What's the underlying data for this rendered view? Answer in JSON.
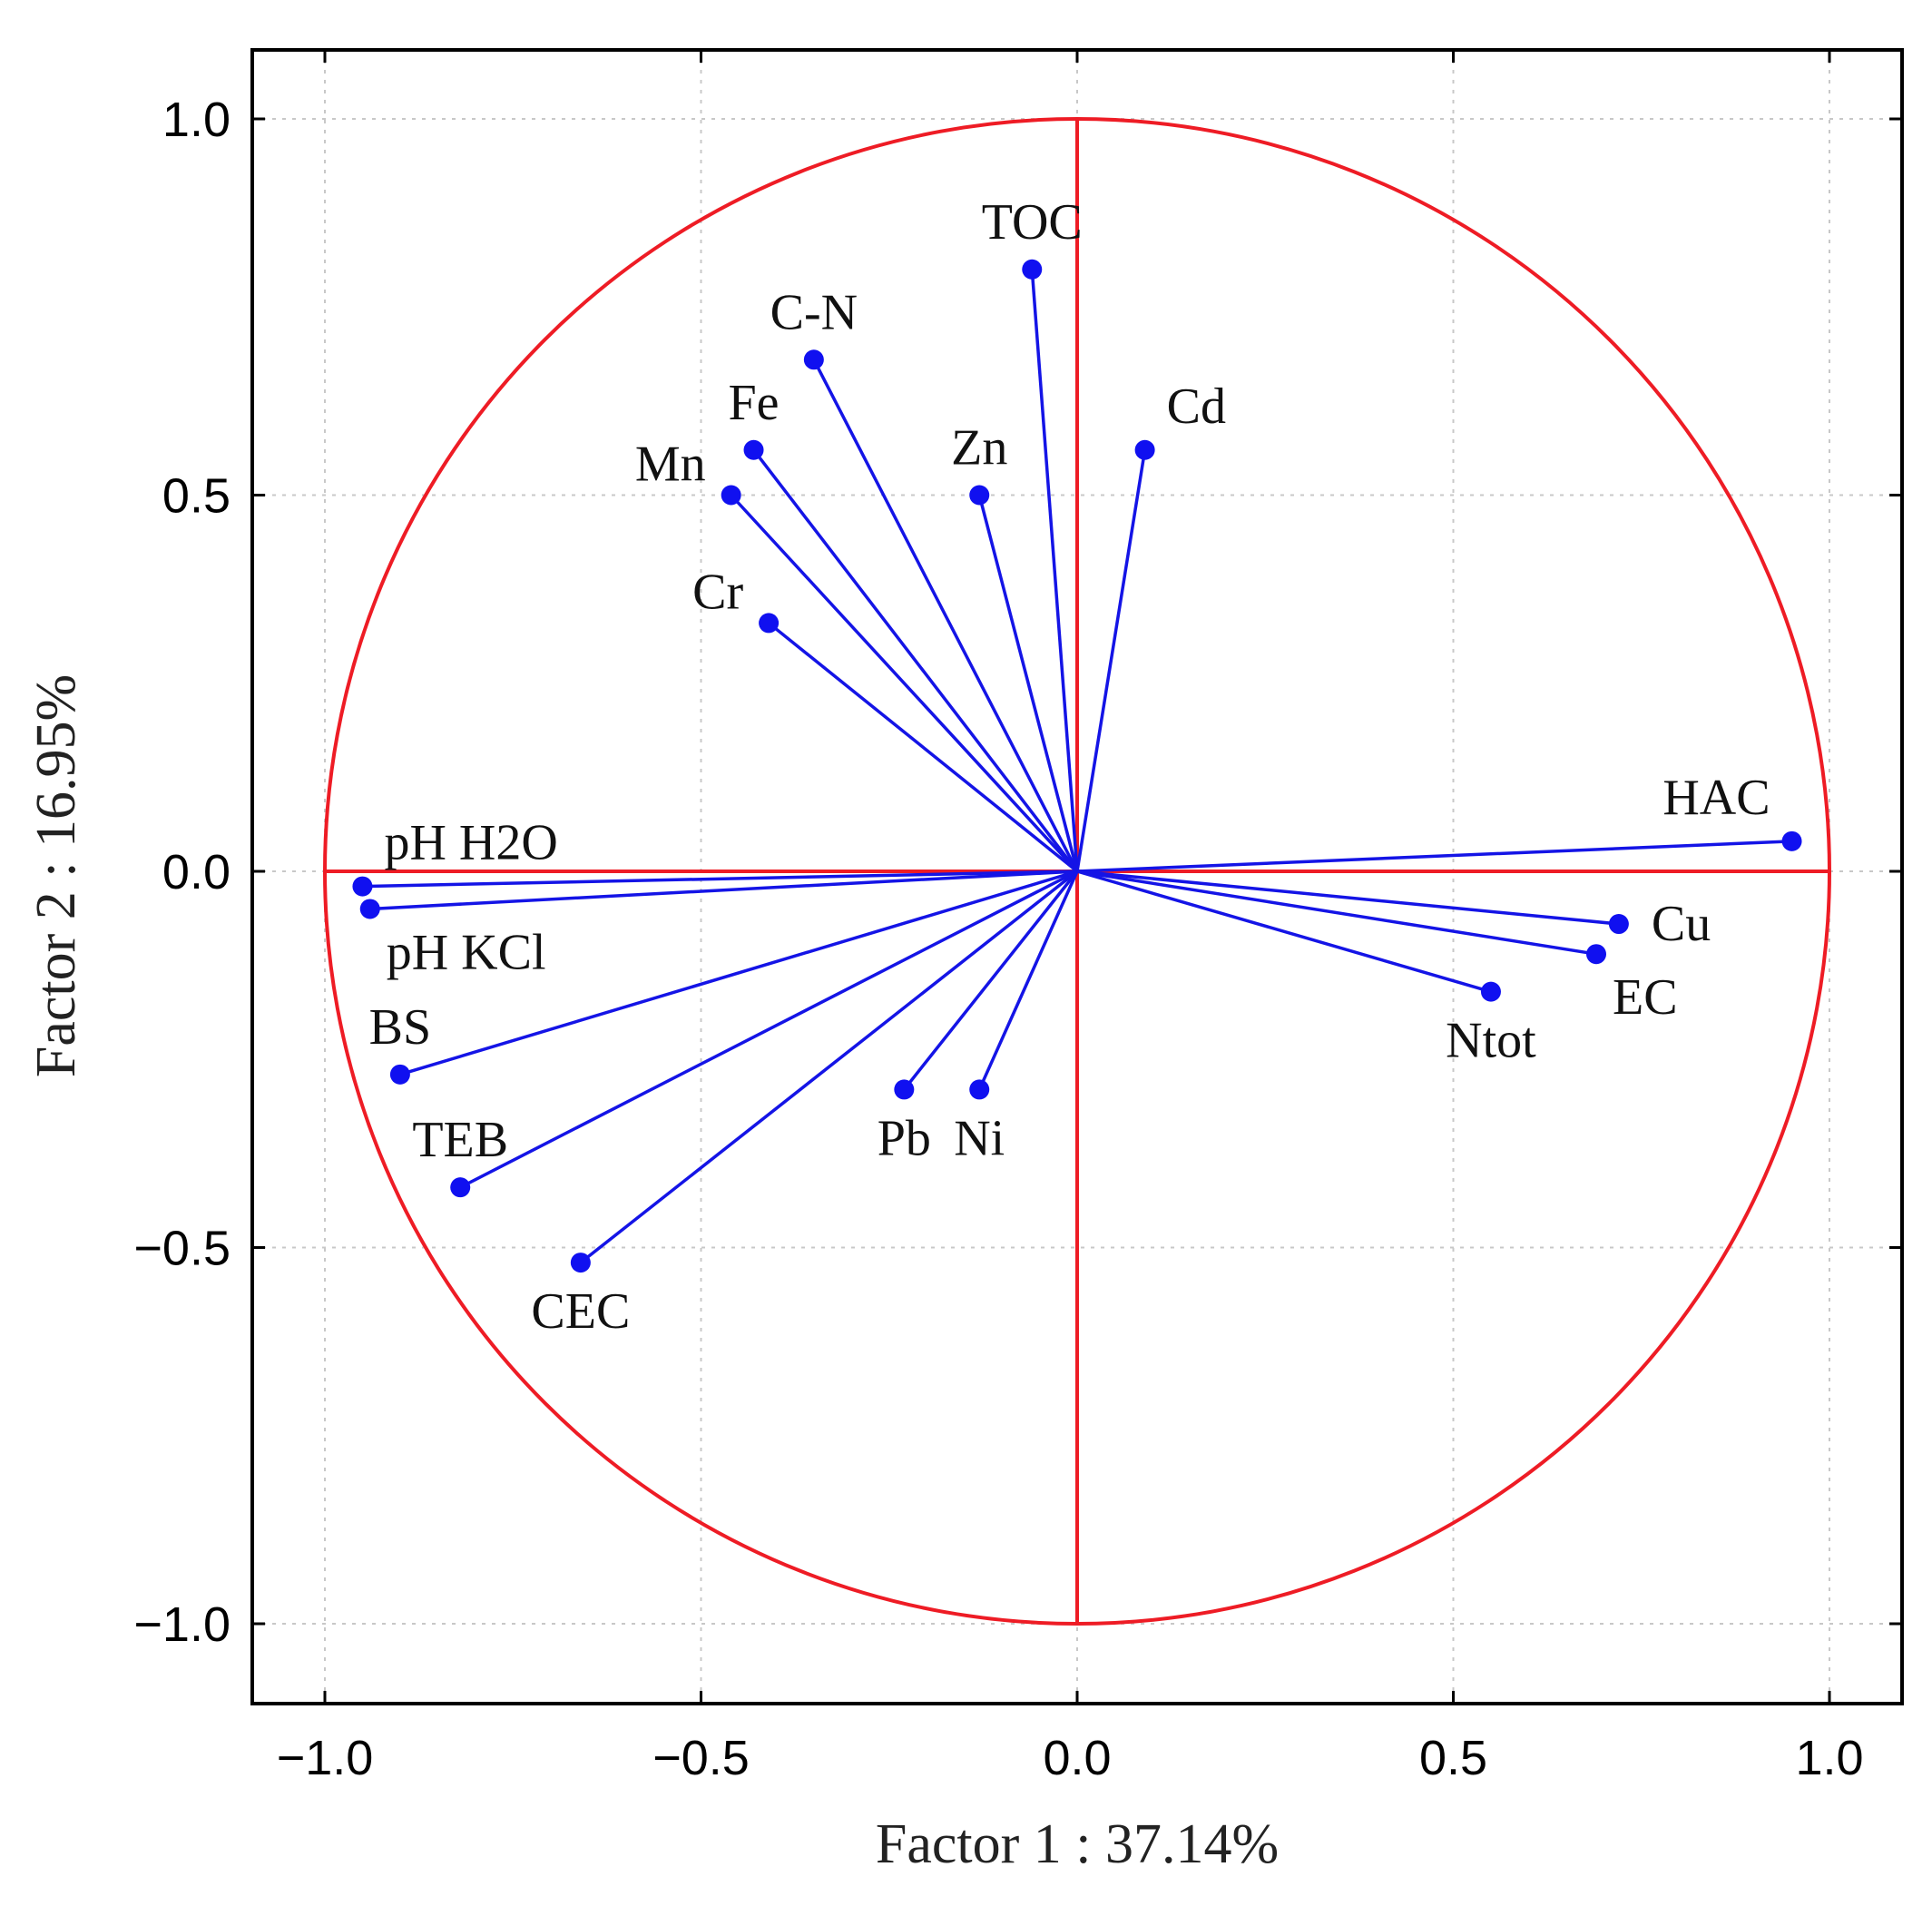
{
  "chart_data": {
    "type": "scatter",
    "subtype": "pca-loading-circle",
    "xlabel": "Factor 1 : 37.14%",
    "ylabel": "Factor 2 : 16.95%",
    "xlim": [
      -1.1,
      1.1
    ],
    "ylim": [
      -1.1,
      1.1
    ],
    "xticks": [
      -1.0,
      -0.5,
      0.0,
      0.5,
      1.0
    ],
    "yticks": [
      -1.0,
      -0.5,
      0.0,
      0.5,
      1.0
    ],
    "xtick_labels": [
      "−1.0",
      "−0.5",
      "0.0",
      "0.5",
      "1.0"
    ],
    "ytick_labels": [
      "−1.0",
      "−0.5",
      "0.0",
      "0.5",
      "1.0"
    ],
    "grid": true,
    "unit_circle": true,
    "colors": {
      "vectors": "#1414e6",
      "circle": "#ee1c25",
      "frame": "#000000"
    },
    "points": [
      {
        "name": "TOC",
        "x": -0.06,
        "y": 0.8,
        "label_pos": "top"
      },
      {
        "name": "C-N",
        "x": -0.35,
        "y": 0.68,
        "label_pos": "top"
      },
      {
        "name": "Fe",
        "x": -0.43,
        "y": 0.56,
        "label_pos": "top"
      },
      {
        "name": "Mn",
        "x": -0.46,
        "y": 0.5,
        "label_pos": "upper-left"
      },
      {
        "name": "Cr",
        "x": -0.41,
        "y": 0.33,
        "label_pos": "upper-left"
      },
      {
        "name": "Zn",
        "x": -0.13,
        "y": 0.5,
        "label_pos": "top"
      },
      {
        "name": "Cd",
        "x": 0.09,
        "y": 0.56,
        "label_pos": "top-right"
      },
      {
        "name": "HAC",
        "x": 0.95,
        "y": 0.04,
        "label_pos": "top-left"
      },
      {
        "name": "pH H2O",
        "x": -0.95,
        "y": -0.02,
        "label_pos": "top-right"
      },
      {
        "name": "pH KCl",
        "x": -0.94,
        "y": -0.05,
        "label_pos": "bottom-right"
      },
      {
        "name": "BS",
        "x": -0.9,
        "y": -0.27,
        "label_pos": "top"
      },
      {
        "name": "TEB",
        "x": -0.82,
        "y": -0.42,
        "label_pos": "top"
      },
      {
        "name": "CEC",
        "x": -0.66,
        "y": -0.52,
        "label_pos": "bottom"
      },
      {
        "name": "Pb",
        "x": -0.23,
        "y": -0.29,
        "label_pos": "bottom"
      },
      {
        "name": "Ni",
        "x": -0.13,
        "y": -0.29,
        "label_pos": "bottom"
      },
      {
        "name": "Cu",
        "x": 0.72,
        "y": -0.07,
        "label_pos": "right"
      },
      {
        "name": "EC",
        "x": 0.69,
        "y": -0.11,
        "label_pos": "bottom-right"
      },
      {
        "name": "Ntot",
        "x": 0.55,
        "y": -0.16,
        "label_pos": "bottom"
      }
    ]
  }
}
